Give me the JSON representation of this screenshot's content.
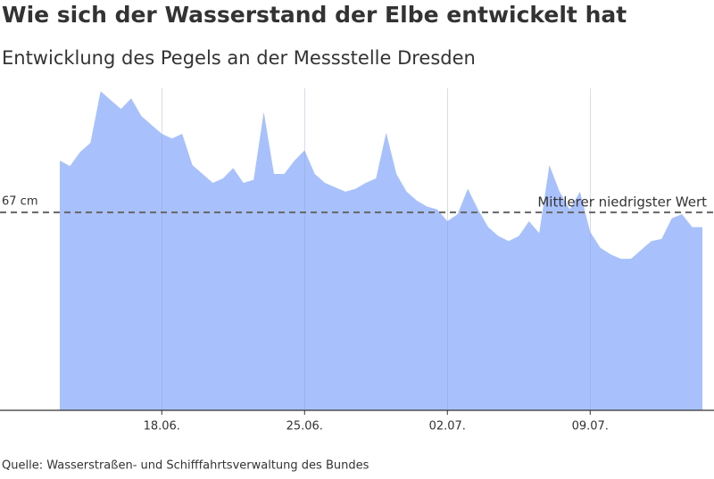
{
  "chart_data": {
    "type": "area",
    "title": "Wie sich der Wasserstand der Elbe entwickelt hat",
    "subtitle": "Entwicklung des Pegels an der Messstelle Dresden",
    "source": "Quelle: Wasserstraßen- und Schifffahrtsverwaltung des Bundes",
    "color": "#a8c1fc",
    "x": [
      13,
      13.5,
      14,
      14.5,
      15,
      15.5,
      16,
      16.5,
      17,
      17.5,
      18,
      18.5,
      19,
      19.5,
      20,
      20.5,
      21,
      21.5,
      22,
      22.5,
      23,
      23.5,
      24,
      24.5,
      25,
      25.5,
      26,
      26.5,
      27,
      27.5,
      28,
      28.5,
      29,
      29.5,
      30,
      30.5,
      31,
      31.5,
      32,
      32.5,
      33,
      33.5,
      34,
      34.5,
      35,
      35.5,
      36,
      36.5,
      37,
      37.5,
      38,
      38.5,
      39,
      39.5,
      40,
      40.5,
      41,
      41.5,
      42,
      42.5,
      43,
      43.5,
      44,
      44.5
    ],
    "values": [
      84.5,
      82.7,
      87.5,
      90.5,
      108,
      105,
      102,
      105.6,
      99.6,
      96.6,
      93.6,
      92,
      93.6,
      83,
      80,
      77,
      78.5,
      82,
      77,
      78,
      101,
      80,
      80,
      84.5,
      88,
      80,
      77,
      75.5,
      74,
      75,
      77,
      78.5,
      94,
      80,
      74,
      71,
      69,
      68,
      64,
      66.4,
      75,
      68,
      62,
      59,
      57.3,
      59,
      64,
      60,
      83,
      74,
      68,
      74,
      60.4,
      55,
      52.8,
      51.3,
      51.3,
      54.3,
      57.3,
      58,
      65,
      66.4,
      62,
      62
    ],
    "xlim": [
      13,
      44.5
    ],
    "ylim": [
      0,
      109
    ],
    "xticks": [
      {
        "value": 18,
        "label": "18.06."
      },
      {
        "value": 25,
        "label": "25.06."
      },
      {
        "value": 32,
        "label": "02.07."
      },
      {
        "value": 39,
        "label": "09.07."
      }
    ],
    "reference": {
      "value": 67,
      "label": "67 cm",
      "name": "Mittlerer niedrigster Wert"
    },
    "grid": true
  }
}
